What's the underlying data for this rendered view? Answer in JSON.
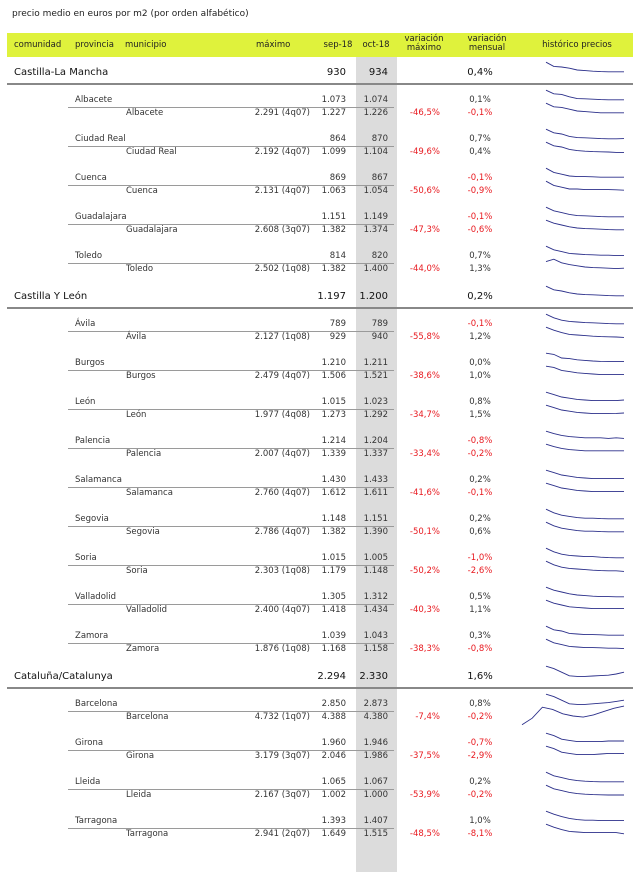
{
  "caption": "precio medio en euros por m2 (por orden alfabético)",
  "headers": {
    "comunidad": "comunidad",
    "provincia": "provincia",
    "municipio": "municipio",
    "maximo": "máximo",
    "sep": "sep-18",
    "oct": "oct-18",
    "var_max_1": "variación",
    "var_max_2": "máximo",
    "var_men_1": "variación",
    "var_men_2": "mensual",
    "historico": "histórico precios"
  },
  "colors": {
    "header_bg": "#dff23c",
    "highlight_col": "#dcdcdc",
    "negative": "#e8191f",
    "spark": "#2b2f8a"
  },
  "rows": [
    {
      "type": "com",
      "name": "Castilla-La Mancha",
      "sep": "930",
      "oct": "934",
      "vmax": "",
      "vmen": "0,4%",
      "spark": [
        0.9,
        0.55,
        0.5,
        0.4,
        0.25,
        0.2,
        0.15,
        0.12,
        0.1,
        0.1,
        0.1
      ]
    },
    {
      "type": "prov",
      "name": "Albacete",
      "sep": "1.073",
      "oct": "1.074",
      "vmax": "",
      "vmen": "0,1%",
      "spark": [
        0.9,
        0.6,
        0.55,
        0.35,
        0.2,
        0.18,
        0.15,
        0.12,
        0.1,
        0.1,
        0.1
      ]
    },
    {
      "type": "mun",
      "name": "Albacete",
      "max": "2.291 (4q07)",
      "sep": "1.227",
      "oct": "1.226",
      "vmax": "-46,5%",
      "vmen": "-0,1%",
      "spark": [
        0.9,
        0.6,
        0.55,
        0.4,
        0.25,
        0.2,
        0.15,
        0.1,
        0.1,
        0.1,
        0.1
      ]
    },
    {
      "type": "prov",
      "name": "Ciudad Real",
      "sep": "864",
      "oct": "870",
      "vmax": "",
      "vmen": "0,7%",
      "spark": [
        0.9,
        0.6,
        0.5,
        0.3,
        0.2,
        0.18,
        0.15,
        0.12,
        0.1,
        0.1,
        0.12
      ]
    },
    {
      "type": "mun",
      "name": "Ciudad Real",
      "max": "2.192 (4q07)",
      "sep": "1.099",
      "oct": "1.104",
      "vmax": "-49,6%",
      "vmen": "0,4%",
      "spark": [
        0.9,
        0.6,
        0.5,
        0.3,
        0.2,
        0.15,
        0.12,
        0.1,
        0.08,
        0.05,
        0.05
      ]
    },
    {
      "type": "prov",
      "name": "Cuenca",
      "sep": "869",
      "oct": "867",
      "vmax": "",
      "vmen": "-0,1%",
      "spark": [
        0.9,
        0.55,
        0.4,
        0.25,
        0.2,
        0.2,
        0.18,
        0.15,
        0.15,
        0.15,
        0.15
      ]
    },
    {
      "type": "mun",
      "name": "Cuenca",
      "max": "2.131 (4q07)",
      "sep": "1.063",
      "oct": "1.054",
      "vmax": "-50,6%",
      "vmen": "-0,9%",
      "spark": [
        0.9,
        0.55,
        0.4,
        0.25,
        0.25,
        0.2,
        0.2,
        0.2,
        0.2,
        0.18,
        0.15
      ]
    },
    {
      "type": "prov",
      "name": "Guadalajara",
      "sep": "1.151",
      "oct": "1.149",
      "vmax": "",
      "vmen": "-0,1%",
      "spark": [
        0.9,
        0.6,
        0.45,
        0.3,
        0.2,
        0.18,
        0.15,
        0.12,
        0.1,
        0.1,
        0.1
      ]
    },
    {
      "type": "mun",
      "name": "Guadalajara",
      "max": "2.608 (3q07)",
      "sep": "1.382",
      "oct": "1.374",
      "vmax": "-47,3%",
      "vmen": "-0,6%",
      "spark": [
        0.9,
        0.65,
        0.5,
        0.35,
        0.25,
        0.2,
        0.18,
        0.15,
        0.12,
        0.1,
        0.1
      ]
    },
    {
      "type": "prov",
      "name": "Toledo",
      "sep": "814",
      "oct": "820",
      "vmax": "",
      "vmen": "0,7%",
      "spark": [
        0.9,
        0.6,
        0.45,
        0.3,
        0.25,
        0.2,
        0.18,
        0.15,
        0.15,
        0.12,
        0.12
      ]
    },
    {
      "type": "mun",
      "name": "Toledo",
      "max": "2.502 (1q08)",
      "sep": "1.382",
      "oct": "1.400",
      "vmax": "-44,0%",
      "vmen": "1,3%",
      "spark": [
        0.7,
        0.9,
        0.6,
        0.45,
        0.35,
        0.25,
        0.2,
        0.18,
        0.15,
        0.12,
        0.15
      ]
    },
    {
      "type": "com",
      "name": "Castilla Y León",
      "sep": "1.197",
      "oct": "1.200",
      "vmax": "",
      "vmen": "0,2%",
      "spark": [
        0.9,
        0.6,
        0.5,
        0.35,
        0.25,
        0.2,
        0.18,
        0.15,
        0.12,
        0.1,
        0.1
      ]
    },
    {
      "type": "prov",
      "name": "Ávila",
      "sep": "789",
      "oct": "789",
      "vmax": "",
      "vmen": "-0,1%",
      "spark": [
        0.9,
        0.6,
        0.4,
        0.3,
        0.25,
        0.2,
        0.18,
        0.15,
        0.12,
        0.1,
        0.1
      ]
    },
    {
      "type": "mun",
      "name": "Ávila",
      "max": "2.127 (1q08)",
      "sep": "929",
      "oct": "940",
      "vmax": "-55,8%",
      "vmen": "1,2%",
      "spark": [
        0.9,
        0.65,
        0.45,
        0.3,
        0.25,
        0.2,
        0.15,
        0.12,
        0.1,
        0.08,
        0.05
      ]
    },
    {
      "type": "prov",
      "name": "Burgos",
      "sep": "1.210",
      "oct": "1.211",
      "vmax": "",
      "vmen": "0,0%",
      "spark": [
        0.9,
        0.8,
        0.5,
        0.45,
        0.35,
        0.3,
        0.25,
        0.22,
        0.2,
        0.2,
        0.2
      ]
    },
    {
      "type": "mun",
      "name": "Burgos",
      "max": "2.479 (4q07)",
      "sep": "1.506",
      "oct": "1.521",
      "vmax": "-38,6%",
      "vmen": "1,0%",
      "spark": [
        0.9,
        0.8,
        0.55,
        0.45,
        0.35,
        0.3,
        0.25,
        0.2,
        0.2,
        0.2,
        0.2
      ]
    },
    {
      "type": "prov",
      "name": "León",
      "sep": "1.015",
      "oct": "1.023",
      "vmax": "",
      "vmen": "0,8%",
      "spark": [
        0.9,
        0.7,
        0.5,
        0.4,
        0.3,
        0.25,
        0.2,
        0.2,
        0.2,
        0.2,
        0.25
      ]
    },
    {
      "type": "mun",
      "name": "León",
      "max": "1.977 (4q08)",
      "sep": "1.273",
      "oct": "1.292",
      "vmax": "-34,7%",
      "vmen": "1,5%",
      "spark": [
        0.9,
        0.7,
        0.5,
        0.4,
        0.3,
        0.25,
        0.2,
        0.2,
        0.2,
        0.22,
        0.25
      ]
    },
    {
      "type": "prov",
      "name": "Palencia",
      "sep": "1.214",
      "oct": "1.204",
      "vmax": "",
      "vmen": "-0,8%",
      "spark": [
        0.9,
        0.7,
        0.55,
        0.45,
        0.4,
        0.35,
        0.35,
        0.35,
        0.3,
        0.35,
        0.3
      ]
    },
    {
      "type": "mun",
      "name": "Palencia",
      "max": "2.007 (4q07)",
      "sep": "1.339",
      "oct": "1.337",
      "vmax": "-33,4%",
      "vmen": "-0,2%",
      "spark": [
        0.9,
        0.7,
        0.55,
        0.45,
        0.4,
        0.35,
        0.35,
        0.35,
        0.35,
        0.35,
        0.35
      ]
    },
    {
      "type": "prov",
      "name": "Salamanca",
      "sep": "1.430",
      "oct": "1.433",
      "vmax": "",
      "vmen": "0,2%",
      "spark": [
        0.9,
        0.7,
        0.5,
        0.4,
        0.3,
        0.25,
        0.2,
        0.2,
        0.2,
        0.2,
        0.2
      ]
    },
    {
      "type": "mun",
      "name": "Salamanca",
      "max": "2.760 (4q07)",
      "sep": "1.612",
      "oct": "1.611",
      "vmax": "-41,6%",
      "vmen": "-0,1%",
      "spark": [
        0.9,
        0.7,
        0.5,
        0.4,
        0.3,
        0.25,
        0.2,
        0.2,
        0.2,
        0.2,
        0.2
      ]
    },
    {
      "type": "prov",
      "name": "Segovia",
      "sep": "1.148",
      "oct": "1.151",
      "vmax": "",
      "vmen": "0,2%",
      "spark": [
        0.9,
        0.6,
        0.4,
        0.3,
        0.2,
        0.15,
        0.15,
        0.12,
        0.1,
        0.1,
        0.1
      ]
    },
    {
      "type": "mun",
      "name": "Segovia",
      "max": "2.786 (4q07)",
      "sep": "1.382",
      "oct": "1.390",
      "vmax": "-50,1%",
      "vmen": "0,6%",
      "spark": [
        0.9,
        0.6,
        0.4,
        0.3,
        0.2,
        0.15,
        0.15,
        0.12,
        0.1,
        0.1,
        0.1
      ]
    },
    {
      "type": "prov",
      "name": "Soria",
      "sep": "1.015",
      "oct": "1.005",
      "vmax": "",
      "vmen": "-1,0%",
      "spark": [
        0.9,
        0.6,
        0.4,
        0.3,
        0.25,
        0.2,
        0.2,
        0.15,
        0.12,
        0.1,
        0.1
      ]
    },
    {
      "type": "mun",
      "name": "Soria",
      "max": "2.303 (1q08)",
      "sep": "1.179",
      "oct": "1.148",
      "vmax": "-50,2%",
      "vmen": "-2,6%",
      "spark": [
        0.9,
        0.6,
        0.4,
        0.3,
        0.25,
        0.2,
        0.15,
        0.12,
        0.1,
        0.1,
        0.05
      ]
    },
    {
      "type": "prov",
      "name": "Valladolid",
      "sep": "1.305",
      "oct": "1.312",
      "vmax": "",
      "vmen": "0,5%",
      "spark": [
        0.9,
        0.65,
        0.5,
        0.35,
        0.25,
        0.2,
        0.15,
        0.12,
        0.12,
        0.1,
        0.1
      ]
    },
    {
      "type": "mun",
      "name": "Valladolid",
      "max": "2.400 (4q07)",
      "sep": "1.418",
      "oct": "1.434",
      "vmax": "-40,3%",
      "vmen": "1,1%",
      "spark": [
        0.9,
        0.65,
        0.5,
        0.35,
        0.3,
        0.25,
        0.2,
        0.2,
        0.2,
        0.2,
        0.22
      ]
    },
    {
      "type": "prov",
      "name": "Zamora",
      "sep": "1.039",
      "oct": "1.043",
      "vmax": "",
      "vmen": "0,3%",
      "spark": [
        0.9,
        0.6,
        0.5,
        0.3,
        0.25,
        0.2,
        0.2,
        0.18,
        0.15,
        0.15,
        0.15
      ]
    },
    {
      "type": "mun",
      "name": "Zamora",
      "max": "1.876 (1q08)",
      "sep": "1.168",
      "oct": "1.158",
      "vmax": "-38,3%",
      "vmen": "-0,8%",
      "spark": [
        0.9,
        0.6,
        0.45,
        0.3,
        0.25,
        0.2,
        0.2,
        0.18,
        0.15,
        0.15,
        0.12
      ]
    },
    {
      "type": "com",
      "name": "Cataluña/Catalunya",
      "sep": "2.294",
      "oct": "2.330",
      "vmax": "",
      "vmen": "1,6%",
      "spark": [
        0.9,
        0.7,
        0.4,
        0.1,
        0.05,
        0.05,
        0.08,
        0.12,
        0.15,
        0.25,
        0.4
      ]
    },
    {
      "type": "prov",
      "name": "Barcelona",
      "sep": "2.850",
      "oct": "2.873",
      "vmax": "",
      "vmen": "0,8%",
      "spark": [
        0.9,
        0.7,
        0.4,
        0.1,
        0.05,
        0.05,
        0.1,
        0.15,
        0.2,
        0.3,
        0.4
      ]
    },
    {
      "type": "mun",
      "name": "Barcelona",
      "max": "4.732 (1q07)",
      "sep": "4.388",
      "oct": "4.380",
      "vmax": "-7,4%",
      "vmen": "-0,2%",
      "spark": [
        0.1,
        0.4,
        0.9,
        0.8,
        0.6,
        0.5,
        0.45,
        0.55,
        0.7,
        0.85,
        0.95
      ]
    },
    {
      "type": "prov",
      "name": "Girona",
      "sep": "1.960",
      "oct": "1.946",
      "vmax": "",
      "vmen": "-0,7%",
      "spark": [
        0.9,
        0.7,
        0.4,
        0.3,
        0.2,
        0.2,
        0.2,
        0.2,
        0.25,
        0.25,
        0.25
      ]
    },
    {
      "type": "mun",
      "name": "Girona",
      "max": "3.179 (3q07)",
      "sep": "2.046",
      "oct": "1.986",
      "vmax": "-37,5%",
      "vmen": "-2,9%",
      "spark": [
        0.9,
        0.7,
        0.4,
        0.3,
        0.2,
        0.2,
        0.2,
        0.25,
        0.3,
        0.3,
        0.28
      ]
    },
    {
      "type": "prov",
      "name": "Lleida",
      "sep": "1.065",
      "oct": "1.067",
      "vmax": "",
      "vmen": "0,2%",
      "spark": [
        0.9,
        0.6,
        0.45,
        0.3,
        0.2,
        0.15,
        0.12,
        0.1,
        0.1,
        0.1,
        0.1
      ]
    },
    {
      "type": "mun",
      "name": "Lleida",
      "max": "2.167 (3q07)",
      "sep": "1.002",
      "oct": "1.000",
      "vmax": "-53,9%",
      "vmen": "-0,2%",
      "spark": [
        0.9,
        0.6,
        0.45,
        0.3,
        0.2,
        0.15,
        0.12,
        0.1,
        0.08,
        0.08,
        0.08
      ]
    },
    {
      "type": "prov",
      "name": "Tarragona",
      "sep": "1.393",
      "oct": "1.407",
      "vmax": "",
      "vmen": "1,0%",
      "spark": [
        0.9,
        0.65,
        0.45,
        0.3,
        0.2,
        0.15,
        0.15,
        0.12,
        0.12,
        0.12,
        0.12
      ]
    },
    {
      "type": "mun",
      "name": "Tarragona",
      "max": "2.941 (2q07)",
      "sep": "1.649",
      "oct": "1.515",
      "vmax": "-48,5%",
      "vmen": "-8,1%",
      "spark": [
        0.9,
        0.65,
        0.45,
        0.3,
        0.25,
        0.2,
        0.2,
        0.2,
        0.2,
        0.2,
        0.1
      ]
    }
  ]
}
